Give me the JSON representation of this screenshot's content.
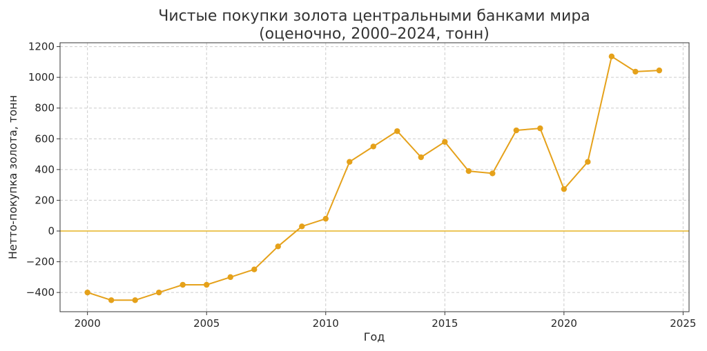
{
  "chart_data": {
    "type": "line",
    "title_lines": [
      "Чистые покупки золота центральными банками мира",
      "(оценочно, 2000–2024, тонн)"
    ],
    "xlabel": "Год",
    "ylabel": "Нетто-покупка золота, тонн",
    "x_ticks": [
      2000,
      2005,
      2010,
      2015,
      2020,
      2025
    ],
    "y_ticks": [
      -400,
      -200,
      0,
      200,
      400,
      600,
      800,
      1000,
      1200
    ],
    "y_tick_labels": [
      "−400",
      "−200",
      "0",
      "200",
      "400",
      "600",
      "800",
      "1000",
      "1200"
    ],
    "xlim": [
      1998.85,
      2025.25
    ],
    "ylim": [
      -525,
      1225
    ],
    "grid": true,
    "reference_line": {
      "y": 0,
      "color": "#e6b422"
    },
    "series": [
      {
        "color": "#e5a11a",
        "x": [
          2000,
          2001,
          2002,
          2003,
          2004,
          2005,
          2006,
          2007,
          2008,
          2009,
          2010,
          2011,
          2012,
          2013,
          2014,
          2015,
          2016,
          2017,
          2018,
          2019,
          2020,
          2021,
          2022,
          2023,
          2024
        ],
        "y": [
          -400,
          -450,
          -450,
          -400,
          -350,
          -350,
          -300,
          -250,
          -100,
          30,
          80,
          450,
          550,
          650,
          480,
          580,
          390,
          375,
          655,
          668,
          273,
          450,
          1136,
          1037,
          1045
        ]
      }
    ]
  }
}
